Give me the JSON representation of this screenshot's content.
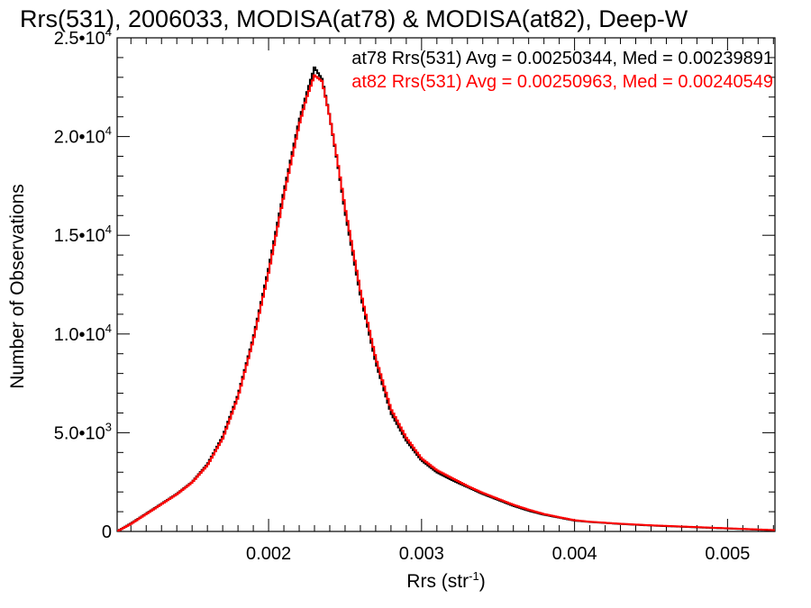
{
  "chart_data": {
    "type": "line",
    "title": "Rrs(531), 2006033, MODISA(at78) & MODISA(at82), Deep-W",
    "xlabel": "Rrs (str",
    "xlabel_sup": "-1",
    "xlabel_close": ")",
    "ylabel": "Number of Observations",
    "xlim": [
      0.00101,
      0.00531
    ],
    "ylim": [
      0,
      25000
    ],
    "grid": false,
    "x_ticks": [
      {
        "value": 0.002,
        "label": "0.002"
      },
      {
        "value": 0.003,
        "label": "0.003"
      },
      {
        "value": 0.004,
        "label": "0.004"
      },
      {
        "value": 0.005,
        "label": "0.005"
      }
    ],
    "y_ticks": [
      {
        "value": 0,
        "mantissa": "0",
        "exp": ""
      },
      {
        "value": 5000,
        "mantissa": "5.0•10",
        "exp": "3"
      },
      {
        "value": 10000,
        "mantissa": "1.0•10",
        "exp": "4"
      },
      {
        "value": 15000,
        "mantissa": "1.5•10",
        "exp": "4"
      },
      {
        "value": 20000,
        "mantissa": "2.0•10",
        "exp": "4"
      },
      {
        "value": 25000,
        "mantissa": "2.5•10",
        "exp": "4"
      }
    ],
    "legend": [
      {
        "text": "at78 Rrs(531) Avg = 0.00250344, Med = 0.00239891",
        "color": "#000000"
      },
      {
        "text": "at82 Rrs(531) Avg = 0.00250963, Med = 0.00240549",
        "color": "#ff0000"
      }
    ],
    "legend_position": "top-right",
    "series": [
      {
        "color": "#000000",
        "x": [
          0.00101,
          0.0011,
          0.0012,
          0.0013,
          0.0014,
          0.0015,
          0.0016,
          0.0017,
          0.0018,
          0.0019,
          0.002,
          0.0021,
          0.0022,
          0.00225,
          0.0023,
          0.00235,
          0.0024,
          0.00245,
          0.0025,
          0.0026,
          0.0027,
          0.0028,
          0.0029,
          0.003,
          0.0031,
          0.0032,
          0.0033,
          0.0034,
          0.0035,
          0.0036,
          0.0037,
          0.0038,
          0.0039,
          0.004,
          0.0041,
          0.0042,
          0.0043,
          0.0044,
          0.0045,
          0.0046,
          0.0047,
          0.0048,
          0.0049,
          0.005,
          0.0051,
          0.0052,
          0.0053
        ],
        "y": [
          0,
          400,
          900,
          1400,
          1900,
          2500,
          3400,
          4800,
          6900,
          9800,
          13300,
          17200,
          20800,
          22200,
          23500,
          22900,
          21000,
          18700,
          16200,
          12000,
          8600,
          6000,
          4600,
          3600,
          3000,
          2600,
          2250,
          1900,
          1600,
          1300,
          1050,
          850,
          700,
          550,
          480,
          430,
          380,
          340,
          300,
          270,
          240,
          210,
          180,
          150,
          120,
          90,
          60
        ]
      },
      {
        "color": "#ff0000",
        "x": [
          0.00101,
          0.0011,
          0.0012,
          0.0013,
          0.0014,
          0.0015,
          0.0016,
          0.0017,
          0.0018,
          0.0019,
          0.002,
          0.0021,
          0.0022,
          0.00225,
          0.0023,
          0.00235,
          0.0024,
          0.00245,
          0.0025,
          0.0026,
          0.0027,
          0.0028,
          0.0029,
          0.003,
          0.0031,
          0.0032,
          0.0033,
          0.0034,
          0.0035,
          0.0036,
          0.0037,
          0.0038,
          0.0039,
          0.004,
          0.0041,
          0.0042,
          0.0043,
          0.0044,
          0.0045,
          0.0046,
          0.0047,
          0.0048,
          0.0049,
          0.005,
          0.0051,
          0.0052,
          0.0053
        ],
        "y": [
          0,
          380,
          880,
          1380,
          1880,
          2480,
          3350,
          4700,
          6800,
          9700,
          13100,
          17000,
          20600,
          22000,
          23100,
          22800,
          21000,
          18800,
          16400,
          12200,
          8800,
          6200,
          4750,
          3700,
          3100,
          2700,
          2300,
          1950,
          1650,
          1350,
          1100,
          880,
          720,
          570,
          490,
          440,
          390,
          350,
          310,
          280,
          250,
          220,
          190,
          160,
          130,
          100,
          70
        ]
      }
    ]
  }
}
